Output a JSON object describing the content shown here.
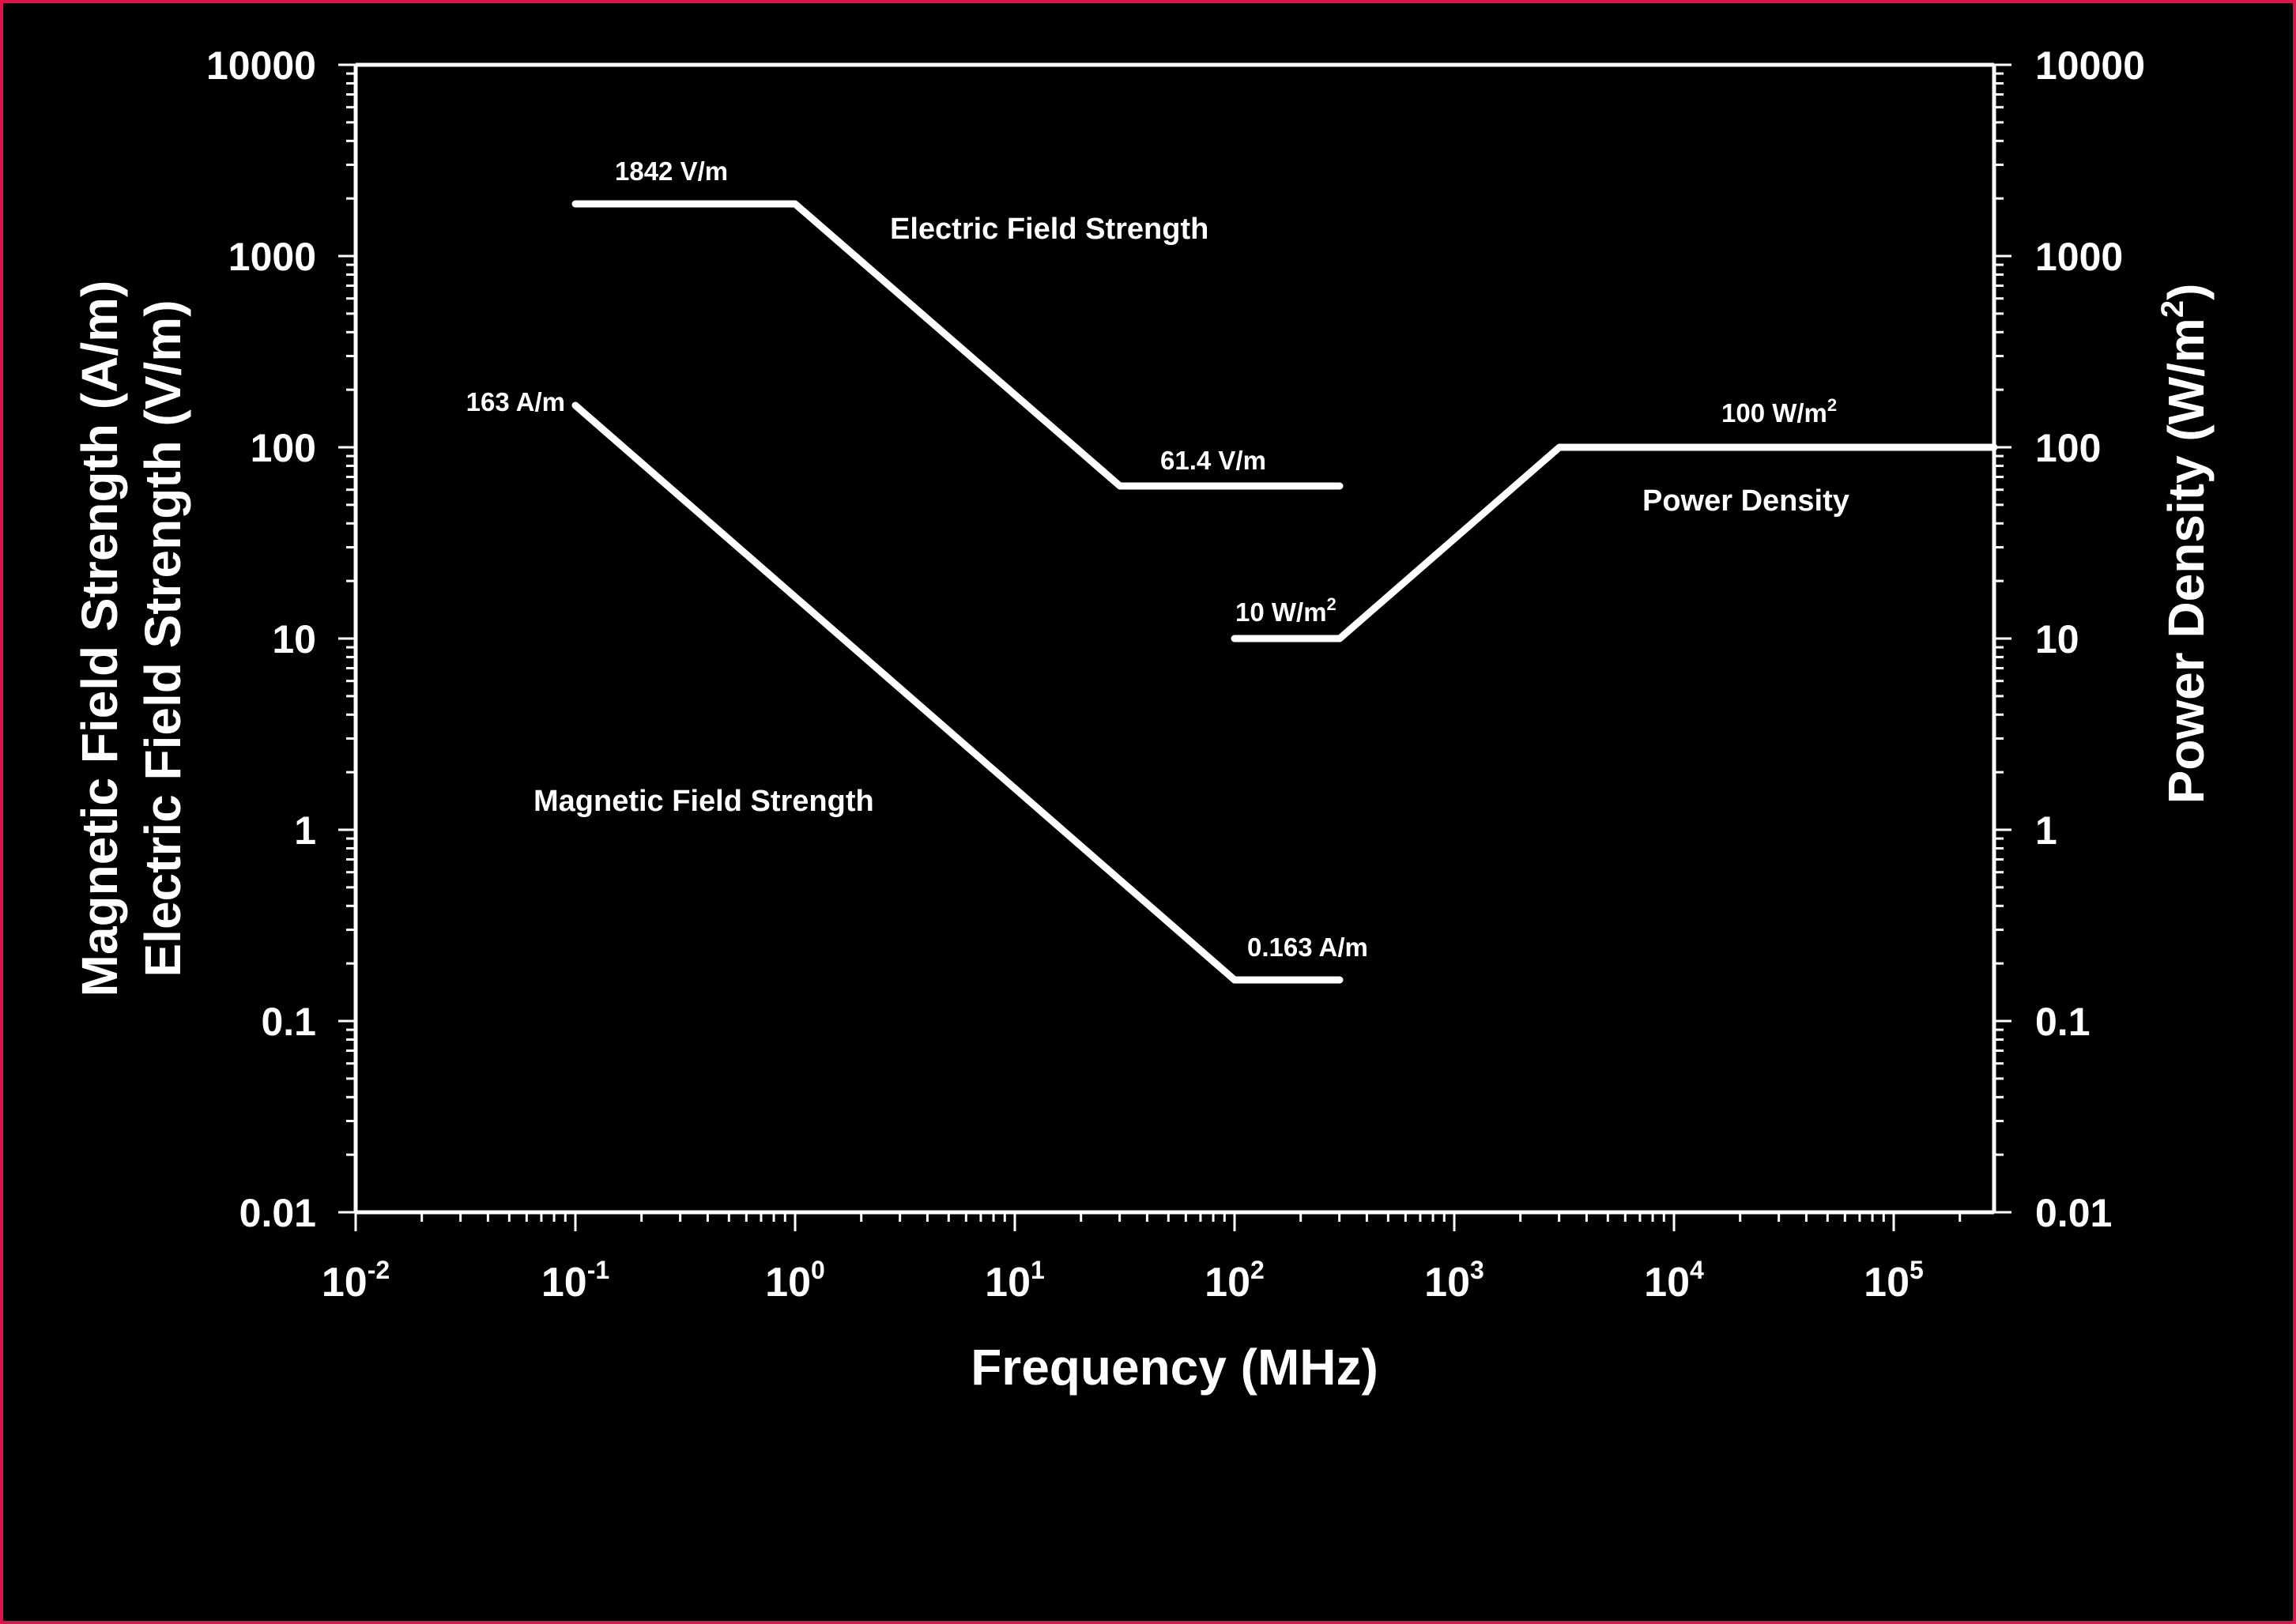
{
  "chart_data": {
    "type": "line",
    "title": "",
    "xlabel": "Frequency (MHz)",
    "ylabel_left_line1": "Magnetic Field Strength (A/m)",
    "ylabel_left_line2": "Electric Field Strength (V/m)",
    "ylabel_right": "Power Density (W/m2)",
    "x_scale": "log",
    "y_scale": "log",
    "xlim": [
      0.01,
      300000
    ],
    "ylim": [
      0.01,
      10000
    ],
    "x_ticks": [
      "10-2",
      "10-1",
      "100",
      "101",
      "102",
      "103",
      "104",
      "105"
    ],
    "x_tick_bases": [
      "10",
      "10",
      "10",
      "10",
      "10",
      "10",
      "10",
      "10"
    ],
    "x_tick_exps": [
      "-2",
      "-1",
      "0",
      "1",
      "2",
      "3",
      "4",
      "5"
    ],
    "y_ticks_left": [
      "10000",
      "1000",
      "100",
      "10",
      "1",
      "0.1",
      "0.01"
    ],
    "y_ticks_right": [
      "10000",
      "1000",
      "100",
      "10",
      "1",
      "0.1",
      "0.01"
    ],
    "grid": false,
    "legend": "none (inline labels)",
    "series": [
      {
        "name": "Electric Field Strength",
        "unit": "V/m",
        "points": [
          [
            0.1,
            1842
          ],
          [
            1,
            1842
          ],
          [
            30,
            61.4
          ],
          [
            300,
            61.4
          ]
        ]
      },
      {
        "name": "Magnetic Field Strength",
        "unit": "A/m",
        "points": [
          [
            0.1,
            163
          ],
          [
            100,
            0.163
          ],
          [
            300,
            0.163
          ]
        ]
      },
      {
        "name": "Power Density",
        "unit": "W/m2",
        "points": [
          [
            100,
            10
          ],
          [
            300,
            10
          ],
          [
            3000,
            100
          ],
          [
            300000,
            100
          ]
        ]
      }
    ],
    "annotations": [
      {
        "text": "1842 V/m",
        "x": 0.2,
        "y": 1842
      },
      {
        "text": "61.4 V/m",
        "x": 60,
        "y": 61.4
      },
      {
        "text": "163 A/m",
        "x": 0.1,
        "y": 163
      },
      {
        "text": "0.163 A/m",
        "x": 150,
        "y": 0.163
      },
      {
        "text": "10 W/m2",
        "x": 150,
        "y": 10
      },
      {
        "text": "100 W/m2",
        "x": 10000,
        "y": 100
      }
    ]
  },
  "labels": {
    "series_electric": "Electric Field Strength",
    "series_magnetic": "Magnetic Field Strength",
    "series_power": "Power Density",
    "ann_1842": "1842 V/m",
    "ann_614": "61.4 V/m",
    "ann_163": "163 A/m",
    "ann_0163": "0.163 A/m",
    "ann_10w": "10 W/m",
    "ann_100w": "100 W/m",
    "sup2": "2",
    "xlabel": "Frequency (MHz)",
    "ylabel_left_1": "Magnetic Field Strength (A/m)",
    "ylabel_left_2": "Electric Field Strength (V/m)",
    "ylabel_right": "Power Density (W/m",
    "ylabel_right_close": ")"
  },
  "colors": {
    "background": "#000000",
    "frame_border": "#e0144c",
    "foreground": "#ffffff"
  }
}
